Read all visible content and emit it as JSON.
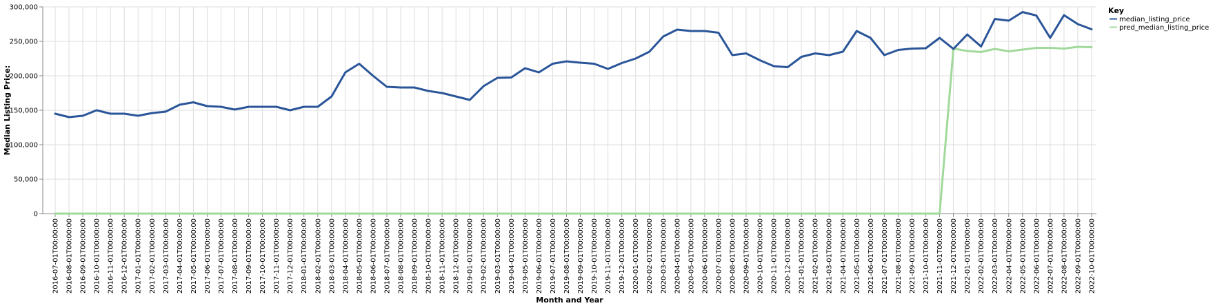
{
  "chart_data": {
    "type": "line",
    "title": "",
    "xlabel": "Month and Year",
    "ylabel": "Median Listing Price:",
    "ylim": [
      0,
      300000
    ],
    "yticks": [
      0,
      50000,
      100000,
      150000,
      200000,
      250000,
      300000
    ],
    "ytick_labels": [
      "0",
      "50,000",
      "100,000",
      "150,000",
      "200,000",
      "250,000",
      "300,000"
    ],
    "grid": true,
    "legend": {
      "title": "Key",
      "position": "top-right"
    },
    "categories": [
      "2016-07-01T00:00:00",
      "2016-08-01T00:00:00",
      "2016-09-01T00:00:00",
      "2016-10-01T00:00:00",
      "2016-11-01T00:00:00",
      "2016-12-01T00:00:00",
      "2017-01-01T00:00:00",
      "2017-02-01T00:00:00",
      "2017-03-01T00:00:00",
      "2017-04-01T00:00:00",
      "2017-05-01T00:00:00",
      "2017-06-01T00:00:00",
      "2017-07-01T00:00:00",
      "2017-08-01T00:00:00",
      "2017-09-01T00:00:00",
      "2017-10-01T00:00:00",
      "2017-11-01T00:00:00",
      "2017-12-01T00:00:00",
      "2018-01-01T00:00:00",
      "2018-02-01T00:00:00",
      "2018-03-01T00:00:00",
      "2018-04-01T00:00:00",
      "2018-05-01T00:00:00",
      "2018-06-01T00:00:00",
      "2018-07-01T00:00:00",
      "2018-08-01T00:00:00",
      "2018-09-01T00:00:00",
      "2018-10-01T00:00:00",
      "2018-11-01T00:00:00",
      "2018-12-01T00:00:00",
      "2019-01-01T00:00:00",
      "2019-02-01T00:00:00",
      "2019-03-01T00:00:00",
      "2019-04-01T00:00:00",
      "2019-05-01T00:00:00",
      "2019-06-01T00:00:00",
      "2019-07-01T00:00:00",
      "2019-08-01T00:00:00",
      "2019-09-01T00:00:00",
      "2019-10-01T00:00:00",
      "2019-11-01T00:00:00",
      "2019-12-01T00:00:00",
      "2020-01-01T00:00:00",
      "2020-02-01T00:00:00",
      "2020-03-01T00:00:00",
      "2020-04-01T00:00:00",
      "2020-05-01T00:00:00",
      "2020-06-01T00:00:00",
      "2020-07-01T00:00:00",
      "2020-08-01T00:00:00",
      "2020-09-01T00:00:00",
      "2020-10-01T00:00:00",
      "2020-11-01T00:00:00",
      "2020-12-01T00:00:00",
      "2021-01-01T00:00:00",
      "2021-02-01T00:00:00",
      "2021-03-01T00:00:00",
      "2021-04-01T00:00:00",
      "2021-05-01T00:00:00",
      "2021-06-01T00:00:00",
      "2021-07-01T00:00:00",
      "2021-08-01T00:00:00",
      "2021-09-01T00:00:00",
      "2021-10-01T00:00:00",
      "2021-11-01T00:00:00",
      "2021-12-01T00:00:00",
      "2022-01-01T00:00:00",
      "2022-02-01T00:00:00",
      "2022-03-01T00:00:00",
      "2022-04-01T00:00:00",
      "2022-05-01T00:00:00",
      "2022-06-01T00:00:00",
      "2022-07-01T00:00:00",
      "2022-08-01T00:00:00",
      "2022-09-01T00:00:00",
      "2022-10-01T00:00:00"
    ],
    "series": [
      {
        "name": "median_listing_price",
        "color": "#2a5599",
        "values": [
          145000,
          140000,
          142000,
          150000,
          145000,
          145000,
          142000,
          145900,
          148000,
          158000,
          161500,
          156000,
          155000,
          151000,
          155000,
          155000,
          155000,
          150000,
          155000,
          155000,
          170000,
          205000,
          217500,
          200000,
          184000,
          183000,
          183000,
          178000,
          175000,
          170000,
          165000,
          185000,
          197000,
          197500,
          211000,
          205000,
          217500,
          221000,
          219000,
          217500,
          210000,
          218500,
          225000,
          235000,
          257000,
          267000,
          265000,
          265000,
          262500,
          230000,
          232500,
          222500,
          214000,
          212500,
          227500,
          232500,
          230000,
          235000,
          265000,
          255000,
          230000,
          237500,
          239500,
          240000,
          255000,
          239000,
          260000,
          242500,
          282500,
          280000,
          292500,
          287500,
          255000,
          288000,
          275000,
          267500
        ]
      },
      {
        "name": "pred_median_listing_price",
        "color": "#a1d99b",
        "values": [
          0,
          0,
          0,
          0,
          0,
          0,
          0,
          0,
          0,
          0,
          0,
          0,
          0,
          0,
          0,
          0,
          0,
          0,
          0,
          0,
          0,
          0,
          0,
          0,
          0,
          0,
          0,
          0,
          0,
          0,
          0,
          0,
          0,
          0,
          0,
          0,
          0,
          0,
          0,
          0,
          0,
          0,
          0,
          0,
          0,
          0,
          0,
          0,
          0,
          0,
          0,
          0,
          0,
          0,
          0,
          0,
          0,
          0,
          0,
          0,
          0,
          0,
          0,
          0,
          0,
          239500,
          236000,
          234500,
          239000,
          235500,
          238000,
          240500,
          240500,
          239500,
          242000,
          241500
        ]
      }
    ]
  }
}
